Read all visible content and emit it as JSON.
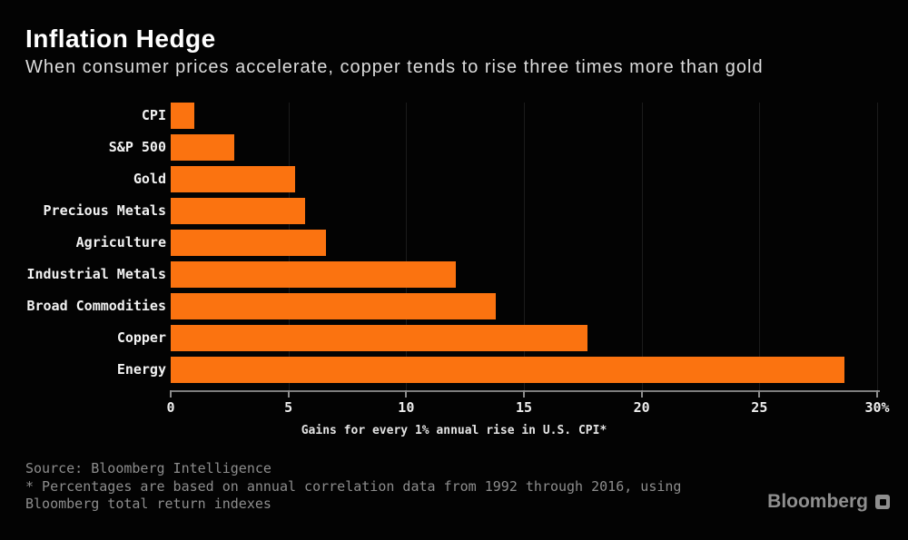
{
  "chart_data": {
    "type": "bar",
    "orientation": "horizontal",
    "title": "Inflation Hedge",
    "subtitle": "When consumer prices accelerate, copper tends to rise three times more than gold",
    "categories": [
      "CPI",
      "S&P 500",
      "Gold",
      "Precious Metals",
      "Agriculture",
      "Industrial Metals",
      "Broad Commodities",
      "Copper",
      "Energy"
    ],
    "values": [
      1,
      2.7,
      5.3,
      5.7,
      6.6,
      12.1,
      13.8,
      17.7,
      28.6
    ],
    "xlabel": "Gains for every 1% annual rise in U.S. CPI*",
    "ylabel": "",
    "xlim": [
      0,
      30
    ],
    "xticks": [
      0,
      5,
      10,
      15,
      20,
      25,
      30
    ],
    "xtick_labels": [
      "0",
      "5",
      "10",
      "15",
      "20",
      "25",
      "30%"
    ],
    "bar_color": "#fb7310",
    "grid": "faint vertical gridlines at x ticks",
    "legend": "none"
  },
  "footer": {
    "source": "Source: Bloomberg Intelligence",
    "note_line1": "* Percentages are based on annual correlation data from 1992 through 2016, using",
    "note_line2": "Bloomberg total return indexes"
  },
  "brand": {
    "label": "Bloomberg"
  },
  "colors": {
    "background": "#030303",
    "bar": "#fb7310",
    "title": "#ffffff",
    "subtitle": "#dcdcdc",
    "axis_line": "#7d7d7d",
    "tick_label": "#ededed",
    "category_label": "#f2f2f2",
    "footnote": "#8d8d8d",
    "brand": "#8f8f8f",
    "gridline": "#1b1b1b"
  }
}
